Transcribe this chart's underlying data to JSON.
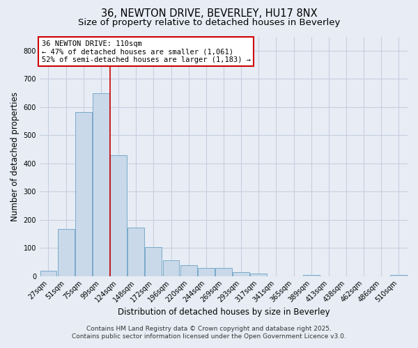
{
  "title1": "36, NEWTON DRIVE, BEVERLEY, HU17 8NX",
  "title2": "Size of property relative to detached houses in Beverley",
  "xlabel": "Distribution of detached houses by size in Beverley",
  "ylabel": "Number of detached properties",
  "bar_labels": [
    "27sqm",
    "51sqm",
    "75sqm",
    "99sqm",
    "124sqm",
    "148sqm",
    "172sqm",
    "196sqm",
    "220sqm",
    "244sqm",
    "269sqm",
    "293sqm",
    "317sqm",
    "341sqm",
    "365sqm",
    "389sqm",
    "413sqm",
    "438sqm",
    "462sqm",
    "486sqm",
    "510sqm"
  ],
  "bar_values": [
    20,
    168,
    582,
    648,
    430,
    172,
    104,
    55,
    38,
    30,
    30,
    15,
    8,
    0,
    0,
    5,
    0,
    0,
    0,
    0,
    5
  ],
  "bar_color": "#c9d9ea",
  "bar_edge_color": "#7aaac8",
  "grid_color": "#c5cfe0",
  "background_color": "#e8edf5",
  "marker_line_color": "#cc0000",
  "annotation_text": "36 NEWTON DRIVE: 110sqm\n← 47% of detached houses are smaller (1,061)\n52% of semi-detached houses are larger (1,183) →",
  "annotation_box_color": "#ffffff",
  "annotation_box_edge": "#cc0000",
  "ylim": [
    0,
    850
  ],
  "yticks": [
    0,
    100,
    200,
    300,
    400,
    500,
    600,
    700,
    800
  ],
  "footer1": "Contains HM Land Registry data © Crown copyright and database right 2025.",
  "footer2": "Contains public sector information licensed under the Open Government Licence v3.0.",
  "title1_fontsize": 10.5,
  "title2_fontsize": 9.5,
  "tick_fontsize": 7,
  "ylabel_fontsize": 8.5,
  "xlabel_fontsize": 8.5,
  "ann_fontsize": 7.5,
  "footer_fontsize": 6.5
}
